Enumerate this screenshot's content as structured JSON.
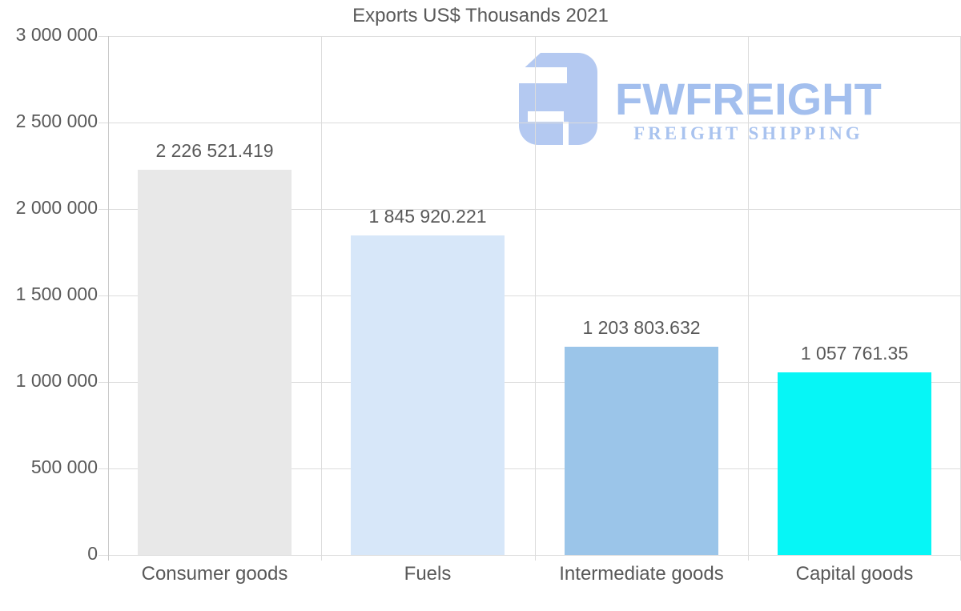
{
  "title": "Exports US$ Thousands 2021",
  "watermark": {
    "brand": "FWFREIGHT",
    "tagline": "FREIGHT SHIPPING",
    "brand_color": "#a3bfee",
    "tagline_color": "#a9c3ef",
    "icon_color": "#b4c9f1"
  },
  "chart_data": {
    "type": "bar",
    "title": "Exports US$ Thousands 2021",
    "categories": [
      "Consumer goods",
      "Fuels",
      "Intermediate goods",
      "Capital goods"
    ],
    "values": [
      2226521.419,
      1845920.221,
      1203803.632,
      1057761.35
    ],
    "value_labels": [
      "2 226 521.419",
      "1 845 920.221",
      "1 203 803.632",
      "1 057 761.35"
    ],
    "bar_colors": [
      "#e8e8e8",
      "#d7e7f9",
      "#9bc5e9",
      "#06f6f6"
    ],
    "xlabel": "",
    "ylabel": "",
    "ylim": [
      0,
      3000000
    ],
    "ytick_step": 500000,
    "ytick_labels": [
      "0",
      "500 000",
      "1 000 000",
      "1 500 000",
      "2 000 000",
      "2 500 000",
      "3 000 000"
    ],
    "grid": true,
    "legend_position": "none",
    "text_color": "#595959",
    "grid_color": "#dcdcdc"
  }
}
